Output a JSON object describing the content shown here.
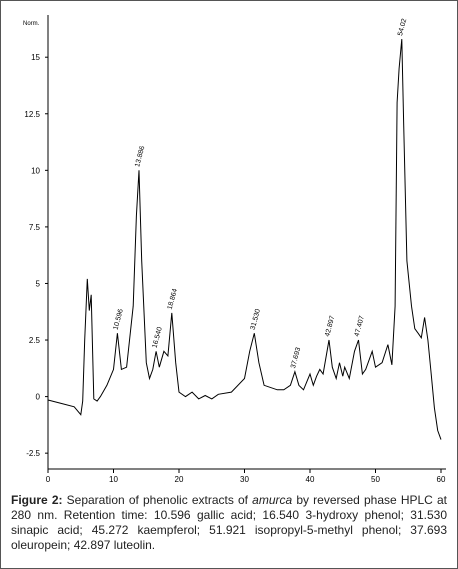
{
  "chart_data": {
    "type": "line",
    "ylabel": "Norm.",
    "x": [
      0,
      2,
      4,
      5,
      5.3,
      5.6,
      6,
      6.3,
      6.6,
      7,
      7.5,
      8,
      9,
      10,
      10.6,
      11.2,
      12,
      13,
      13.5,
      13.9,
      14.3,
      15,
      15.5,
      16,
      16.5,
      17,
      17.7,
      18.3,
      18.9,
      19.5,
      20,
      21,
      22,
      23,
      24,
      25,
      26,
      28,
      30,
      30.8,
      31.5,
      32.2,
      33,
      35,
      36,
      37,
      37.7,
      38.3,
      39,
      40,
      40.5,
      41,
      41.5,
      42,
      42.9,
      43.4,
      44,
      44.5,
      45,
      45.3,
      46,
      46.8,
      47.4,
      48,
      48.5,
      49.5,
      50,
      51,
      51.9,
      52.5,
      53,
      53.3,
      53.6,
      54.02,
      54.3,
      54.8,
      55.5,
      56,
      56.5,
      57,
      57.5,
      58,
      58.5,
      59,
      59.5,
      60
    ],
    "values": [
      -0.15,
      -0.3,
      -0.45,
      -0.8,
      -0.2,
      2.5,
      5.2,
      3.8,
      4.5,
      -0.1,
      -0.2,
      0,
      0.5,
      1.2,
      2.8,
      1.2,
      1.3,
      4,
      8,
      10,
      6,
      1.5,
      0.8,
      1.2,
      2,
      1.3,
      2,
      1.8,
      3.7,
      1.5,
      0.2,
      0,
      0.2,
      -0.1,
      0.05,
      -0.1,
      0.1,
      0.2,
      0.8,
      2,
      2.8,
      1.5,
      0.5,
      0.3,
      0.3,
      0.5,
      1.1,
      0.5,
      0.3,
      1,
      0.5,
      0.9,
      1.2,
      1,
      2.5,
      1.3,
      0.8,
      1.5,
      0.9,
      1.3,
      0.8,
      2,
      2.5,
      1,
      1.2,
      2,
      1.3,
      1.5,
      2.3,
      1.4,
      4,
      13,
      14.5,
      15.8,
      12,
      6,
      4,
      3,
      2.8,
      2.6,
      3.5,
      2.5,
      1,
      -0.5,
      -1.5,
      -1.9
    ],
    "color": "#000000",
    "xlim": [
      0,
      60
    ],
    "xticks": [
      0,
      10,
      20,
      30,
      40,
      50,
      60
    ],
    "ylim": [
      -3.2,
      16.6
    ],
    "yticks": [
      -2.5,
      0,
      2.5,
      5,
      7.5,
      10,
      12.5,
      15
    ],
    "annotations": [
      {
        "x": 10.596,
        "y": 2.8,
        "label": "10.596"
      },
      {
        "x": 13.886,
        "y": 10,
        "label": "13.886"
      },
      {
        "x": 16.54,
        "y": 2,
        "label": "16.540"
      },
      {
        "x": 18.864,
        "y": 3.7,
        "label": "18.864"
      },
      {
        "x": 31.53,
        "y": 2.8,
        "label": "31.530"
      },
      {
        "x": 37.693,
        "y": 1.1,
        "label": "37.693"
      },
      {
        "x": 42.897,
        "y": 2.5,
        "label": "42.897"
      },
      {
        "x": 47.407,
        "y": 2.5,
        "label": "47.407"
      },
      {
        "x": 54.02,
        "y": 15.8,
        "label": "54.02"
      }
    ]
  },
  "caption": {
    "label": "Figure 2:",
    "before": " Separation of phenolic extracts of ",
    "italic": "amurca",
    "after": " by reversed phase HPLC at 280 nm. Retention time: 10.596 gallic acid; 16.540 3-hydroxy phenol; 31.530 sinapic acid; 45.272 kaempferol; 51.921 isopropyl-5-methyl phenol; 37.693 oleuropein; 42.897 luteolin."
  }
}
